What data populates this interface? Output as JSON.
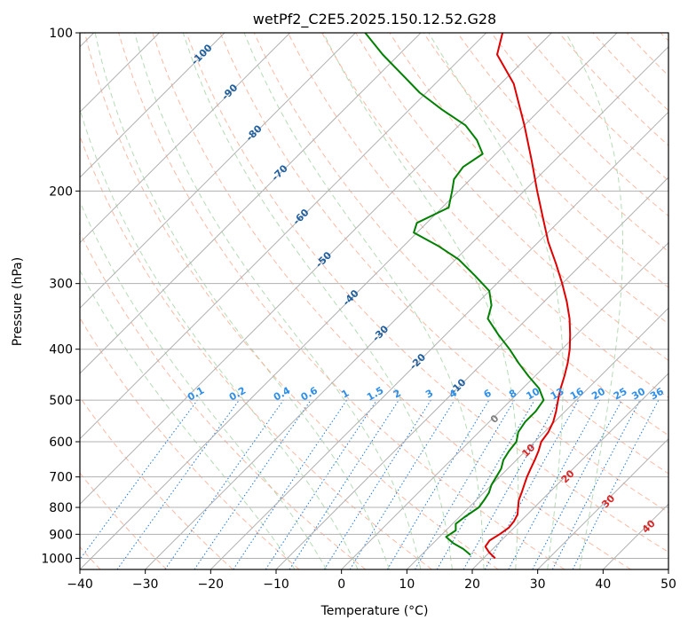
{
  "chart_data": {
    "type": "line",
    "title": "wetPf2_C2E5.2025.150.12.52.G28",
    "xlabel": "Temperature (°C)",
    "ylabel": "Pressure (hPa)",
    "xlim": [
      -40,
      50
    ],
    "ylim": [
      1050,
      100
    ],
    "y_scale": "log",
    "x_ticks": [
      -40,
      -30,
      -20,
      -10,
      0,
      10,
      20,
      30,
      40,
      50
    ],
    "y_ticks": [
      100,
      200,
      300,
      400,
      500,
      600,
      700,
      800,
      900,
      1000
    ],
    "grid": true,
    "series": [
      {
        "color": "#e00000",
        "points": [
          {
            "t": 21.8,
            "p": 1000
          },
          {
            "t": 20.0,
            "p": 975
          },
          {
            "t": 18.5,
            "p": 950
          },
          {
            "t": 18.2,
            "p": 925
          },
          {
            "t": 18.8,
            "p": 900
          },
          {
            "t": 19.2,
            "p": 875
          },
          {
            "t": 19.0,
            "p": 850
          },
          {
            "t": 18.5,
            "p": 825
          },
          {
            "t": 17.5,
            "p": 800
          },
          {
            "t": 16.5,
            "p": 775
          },
          {
            "t": 15.8,
            "p": 750
          },
          {
            "t": 15.0,
            "p": 725
          },
          {
            "t": 14.2,
            "p": 700
          },
          {
            "t": 13.5,
            "p": 675
          },
          {
            "t": 12.8,
            "p": 650
          },
          {
            "t": 12.0,
            "p": 625
          },
          {
            "t": 11.0,
            "p": 600
          },
          {
            "t": 10.6,
            "p": 575
          },
          {
            "t": 9.8,
            "p": 550
          },
          {
            "t": 8.6,
            "p": 525
          },
          {
            "t": 7.2,
            "p": 500
          },
          {
            "t": 5.8,
            "p": 475
          },
          {
            "t": 4.5,
            "p": 450
          },
          {
            "t": 3.0,
            "p": 425
          },
          {
            "t": 1.2,
            "p": 400
          },
          {
            "t": -1.0,
            "p": 375
          },
          {
            "t": -3.5,
            "p": 350
          },
          {
            "t": -6.5,
            "p": 325
          },
          {
            "t": -10.0,
            "p": 300
          },
          {
            "t": -14.0,
            "p": 275
          },
          {
            "t": -18.5,
            "p": 250
          },
          {
            "t": -23.0,
            "p": 225
          },
          {
            "t": -28.0,
            "p": 200
          },
          {
            "t": -33.5,
            "p": 175
          },
          {
            "t": -40.0,
            "p": 150
          },
          {
            "t": -48.0,
            "p": 125
          },
          {
            "t": -55.0,
            "p": 110
          },
          {
            "t": -57.5,
            "p": 100
          }
        ]
      },
      {
        "color": "#008000",
        "points": [
          {
            "t": 17.5,
            "p": 985
          },
          {
            "t": 15.5,
            "p": 960
          },
          {
            "t": 13.0,
            "p": 935
          },
          {
            "t": 11.0,
            "p": 910
          },
          {
            "t": 11.5,
            "p": 885
          },
          {
            "t": 10.5,
            "p": 860
          },
          {
            "t": 10.8,
            "p": 835
          },
          {
            "t": 11.5,
            "p": 800
          },
          {
            "t": 11.2,
            "p": 775
          },
          {
            "t": 10.8,
            "p": 750
          },
          {
            "t": 10.0,
            "p": 725
          },
          {
            "t": 9.5,
            "p": 700
          },
          {
            "t": 9.0,
            "p": 675
          },
          {
            "t": 8.0,
            "p": 650
          },
          {
            "t": 7.5,
            "p": 625
          },
          {
            "t": 7.2,
            "p": 600
          },
          {
            "t": 6.0,
            "p": 575
          },
          {
            "t": 5.5,
            "p": 550
          },
          {
            "t": 5.5,
            "p": 525
          },
          {
            "t": 5.0,
            "p": 500
          },
          {
            "t": 2.5,
            "p": 475
          },
          {
            "t": -1.0,
            "p": 450
          },
          {
            "t": -4.5,
            "p": 425
          },
          {
            "t": -8.0,
            "p": 400
          },
          {
            "t": -12.0,
            "p": 375
          },
          {
            "t": -16.0,
            "p": 350
          },
          {
            "t": -17.5,
            "p": 330
          },
          {
            "t": -20.0,
            "p": 310
          },
          {
            "t": -24.5,
            "p": 290
          },
          {
            "t": -29.5,
            "p": 270
          },
          {
            "t": -34.5,
            "p": 255
          },
          {
            "t": -40.5,
            "p": 240
          },
          {
            "t": -41.5,
            "p": 230
          },
          {
            "t": -39.0,
            "p": 215
          },
          {
            "t": -41.0,
            "p": 200
          },
          {
            "t": -42.5,
            "p": 190
          },
          {
            "t": -43.0,
            "p": 180
          },
          {
            "t": -42.0,
            "p": 170
          },
          {
            "t": -45.0,
            "p": 160
          },
          {
            "t": -49.0,
            "p": 150
          },
          {
            "t": -55.0,
            "p": 140
          },
          {
            "t": -61.0,
            "p": 130
          },
          {
            "t": -66.5,
            "p": 120
          },
          {
            "t": -72.5,
            "p": 110
          },
          {
            "t": -78.5,
            "p": 100
          }
        ]
      }
    ],
    "dry_adiabats_K": [
      233,
      243,
      253,
      263,
      273,
      283,
      293,
      303,
      313,
      323,
      333,
      343,
      353,
      363,
      373,
      383,
      393,
      403,
      413,
      423,
      433,
      443,
      453,
      463,
      473
    ],
    "moist_adiabats_C": [
      -10,
      -5,
      0,
      5,
      10,
      15,
      20,
      25,
      30,
      35
    ],
    "isotherm_labels": [
      {
        "t": -100,
        "text": "-100"
      },
      {
        "t": -90,
        "text": "-90"
      },
      {
        "t": -80,
        "text": "-80"
      },
      {
        "t": -70,
        "text": "-70"
      },
      {
        "t": -60,
        "text": "-60"
      },
      {
        "t": -50,
        "text": "-50"
      },
      {
        "t": -40,
        "text": "-40"
      },
      {
        "t": -30,
        "text": "-30"
      },
      {
        "t": -20,
        "text": "-20"
      },
      {
        "t": -10,
        "text": "-10"
      }
    ],
    "mixing_ratio_labels": [
      "0.1",
      "0.2",
      "0.4",
      "0.6",
      "1",
      "1.5",
      "2",
      "3",
      "4",
      "6",
      "8",
      "10",
      "13",
      "16",
      "20",
      "25",
      "30",
      "36"
    ],
    "mixing_ratio_values": [
      0.1,
      0.2,
      0.4,
      0.6,
      1,
      1.5,
      2,
      3,
      4,
      6,
      8,
      10,
      13,
      16,
      20,
      25,
      30,
      36
    ],
    "warm_isotherm_labels": [
      {
        "t": 0,
        "text": "0",
        "color": "#808080"
      },
      {
        "t": 10,
        "text": "10",
        "color": "#d62728"
      },
      {
        "t": 20,
        "text": "20",
        "color": "#d62728"
      },
      {
        "t": 30,
        "text": "30",
        "color": "#d62728"
      },
      {
        "t": 40,
        "text": "40",
        "color": "#d62728"
      }
    ]
  }
}
